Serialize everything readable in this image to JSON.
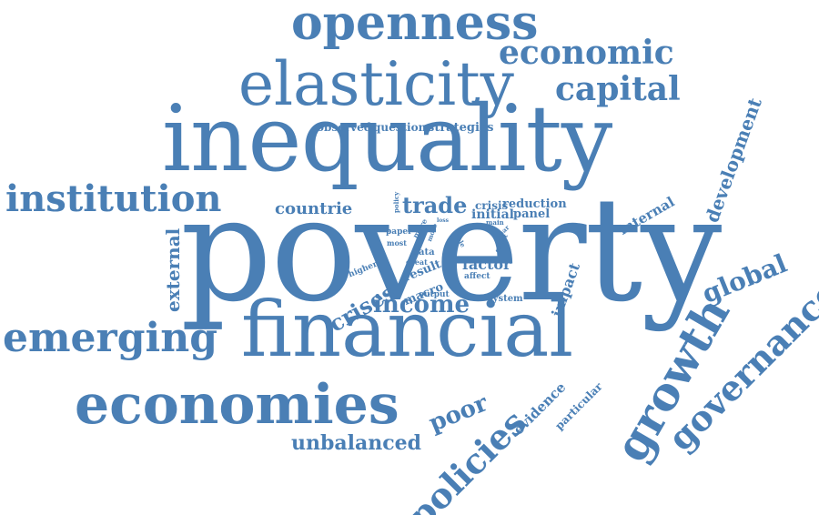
{
  "cloud": {
    "color": "#4a7fb5",
    "words": {
      "poverty": "poverty",
      "inequality": "inequality",
      "financial": "financial",
      "elasticity": "elasticity",
      "economies": "economies",
      "openness": "openness",
      "emerging": "emerging",
      "institution": "institution",
      "growth": "growth",
      "governance": "governance",
      "economic": "economic",
      "capital": "capital",
      "policies": "policies",
      "income": "income",
      "global": "global",
      "development": "development",
      "external": "external",
      "crises": "crises",
      "poor": "poor",
      "unbalanced": "unbalanced",
      "countrie": "countrie",
      "trade": "trade",
      "impact": "impact",
      "evidence": "evidence",
      "particular": "particular",
      "internal": "internal",
      "reduction": "reduction",
      "crisis": "crisis",
      "initial": "initial",
      "panel": "panel",
      "factor": "factor",
      "result": "result",
      "observed": "observed",
      "question": "question",
      "strategies": "strategies",
      "macro": "macro",
      "system": "system",
      "output": "output",
      "affect": "affect",
      "higher": "higher",
      "most": "most",
      "paper": "paper",
      "data": "data",
      "great": "great",
      "main": "main",
      "policy": "policy",
      "loss": "loss",
      "year": "year",
      "role": "role",
      "effect": "effect",
      "more": "more",
      "move": "move"
    }
  }
}
